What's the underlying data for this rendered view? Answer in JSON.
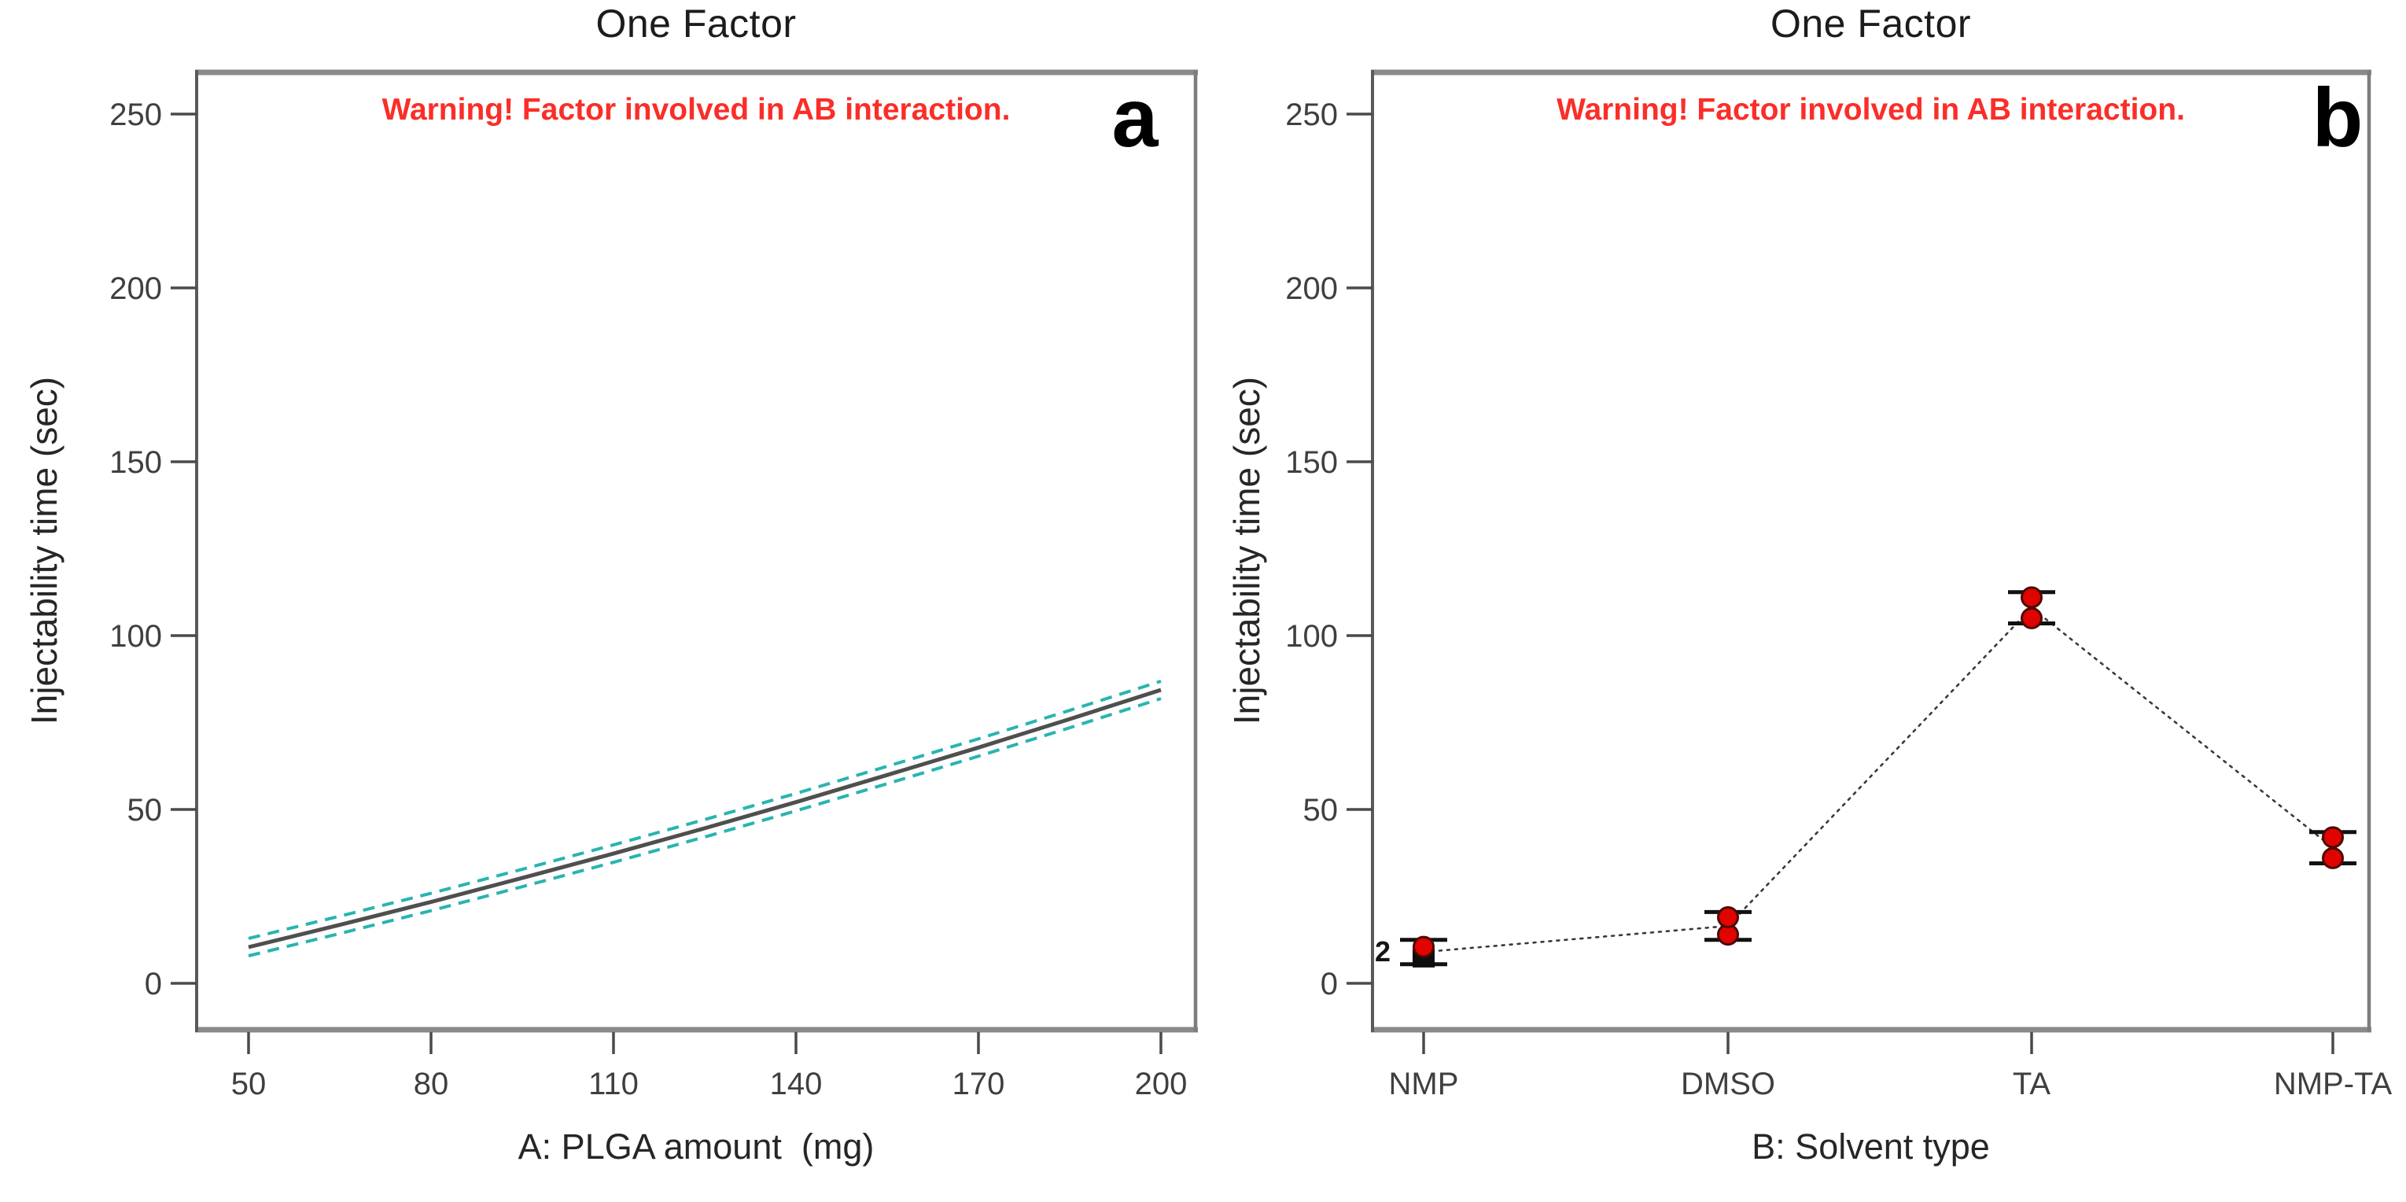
{
  "colors": {
    "warning_red": "#fa2e28",
    "band_teal": "#29b4b1",
    "curve_gray": "#4f4f4f",
    "point_red": "#e00300",
    "point_edge": "#4a0a05",
    "frame_gray": "#8a8a8a",
    "axis_dark": "#4a4a4a",
    "tick_text": "#3f3f3f",
    "connector_black": "#3a3a3a",
    "errorbar_black": "#111111"
  },
  "chart_data": [
    {
      "id": "panel_a",
      "type": "line",
      "panel_label": "a",
      "title": "One Factor",
      "warning": "Warning! Factor involved in AB interaction.",
      "xlabel": "A: PLGA amount  (mg)",
      "ylabel": "Injectability time (sec)",
      "x_ticks": [
        50,
        80,
        110,
        140,
        170,
        200
      ],
      "y_ticks": [
        0,
        50,
        100,
        150,
        200,
        250
      ],
      "xlim": [
        41.5,
        205.7
      ],
      "ylim": [
        -13,
        262
      ],
      "grid": false,
      "legend": "none",
      "series": [
        {
          "name": "prediction",
          "x": [
            50,
            65,
            80,
            95,
            110,
            125,
            140,
            155,
            170,
            185,
            200
          ],
          "y": [
            10.4,
            16.8,
            23.4,
            30.3,
            37.3,
            44.6,
            52.1,
            59.9,
            67.8,
            76.0,
            84.4
          ]
        },
        {
          "name": "confidence-band",
          "style": "dashed",
          "offset": 2.5
        }
      ]
    },
    {
      "id": "panel_b",
      "type": "scatter",
      "panel_label": "b",
      "title": "One Factor",
      "warning": "Warning! Factor involved in AB interaction.",
      "xlabel": "B: Solvent type",
      "ylabel": "Injectability time (sec)",
      "categories": [
        "NMP",
        "DMSO",
        "TA",
        "NMP-TA"
      ],
      "y_ticks": [
        0,
        50,
        100,
        150,
        200,
        250
      ],
      "ylim": [
        -13,
        262
      ],
      "grid": false,
      "legend": "none",
      "connector_means": [
        9,
        16.5,
        108,
        39
      ],
      "clusters": [
        {
          "category": "NMP",
          "design_points": [
            10.5
          ],
          "square_point": 7.5,
          "error_low": 5.5,
          "error_high": 12.5,
          "count_label": "2"
        },
        {
          "category": "DMSO",
          "design_points": [
            14,
            19
          ],
          "square_point": null,
          "error_low": 12.5,
          "error_high": 20.5,
          "count_label": ""
        },
        {
          "category": "TA",
          "design_points": [
            105,
            111
          ],
          "square_point": null,
          "error_low": 103.5,
          "error_high": 112.5,
          "count_label": ""
        },
        {
          "category": "NMP-TA",
          "design_points": [
            36,
            42
          ],
          "square_point": null,
          "error_low": 34.5,
          "error_high": 43.5,
          "count_label": ""
        }
      ]
    }
  ]
}
